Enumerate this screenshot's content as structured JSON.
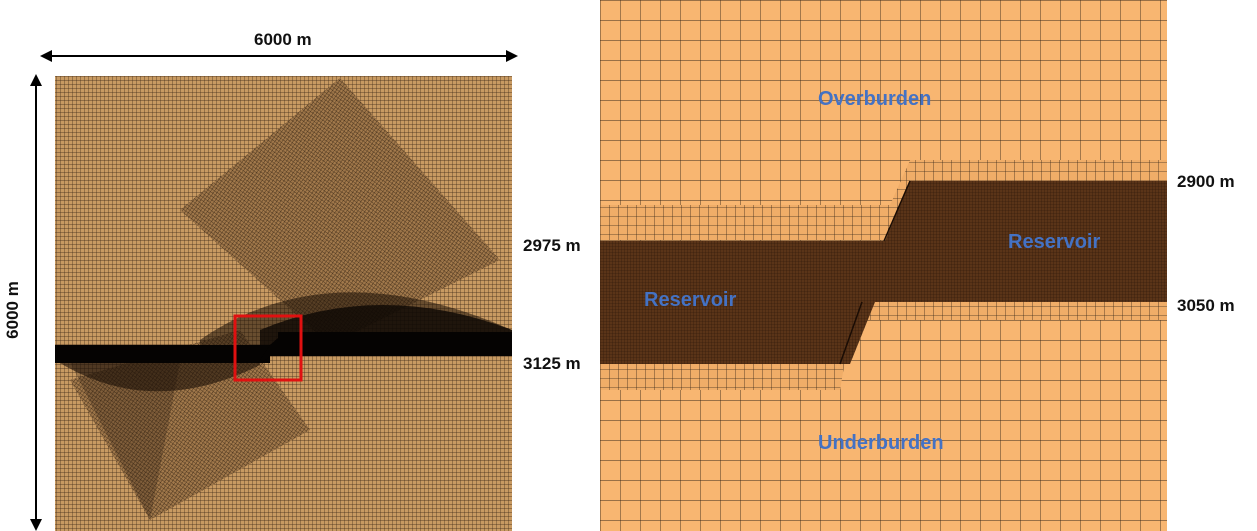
{
  "colors": {
    "mesh_fill": "#f8b671",
    "mesh_line": "#2a1a0c",
    "dense_mesh": "#3a2210",
    "reservoir_fill": "#4a2a14",
    "label_blue": "#4472c4",
    "zoom_box": "#e01010",
    "left_mesh_base": "#c4955c"
  },
  "left_panel": {
    "width_label": "6000 m",
    "height_label": "6000 m"
  },
  "depth_labels": {
    "left_top": "2975 m",
    "left_bottom": "3125 m",
    "right_top": "2900 m",
    "right_bottom": "3050 m"
  },
  "right_panel": {
    "overburden": "Overburden",
    "reservoir_left": "Reservoir",
    "reservoir_right": "Reservoir",
    "underburden": "Underburden"
  }
}
